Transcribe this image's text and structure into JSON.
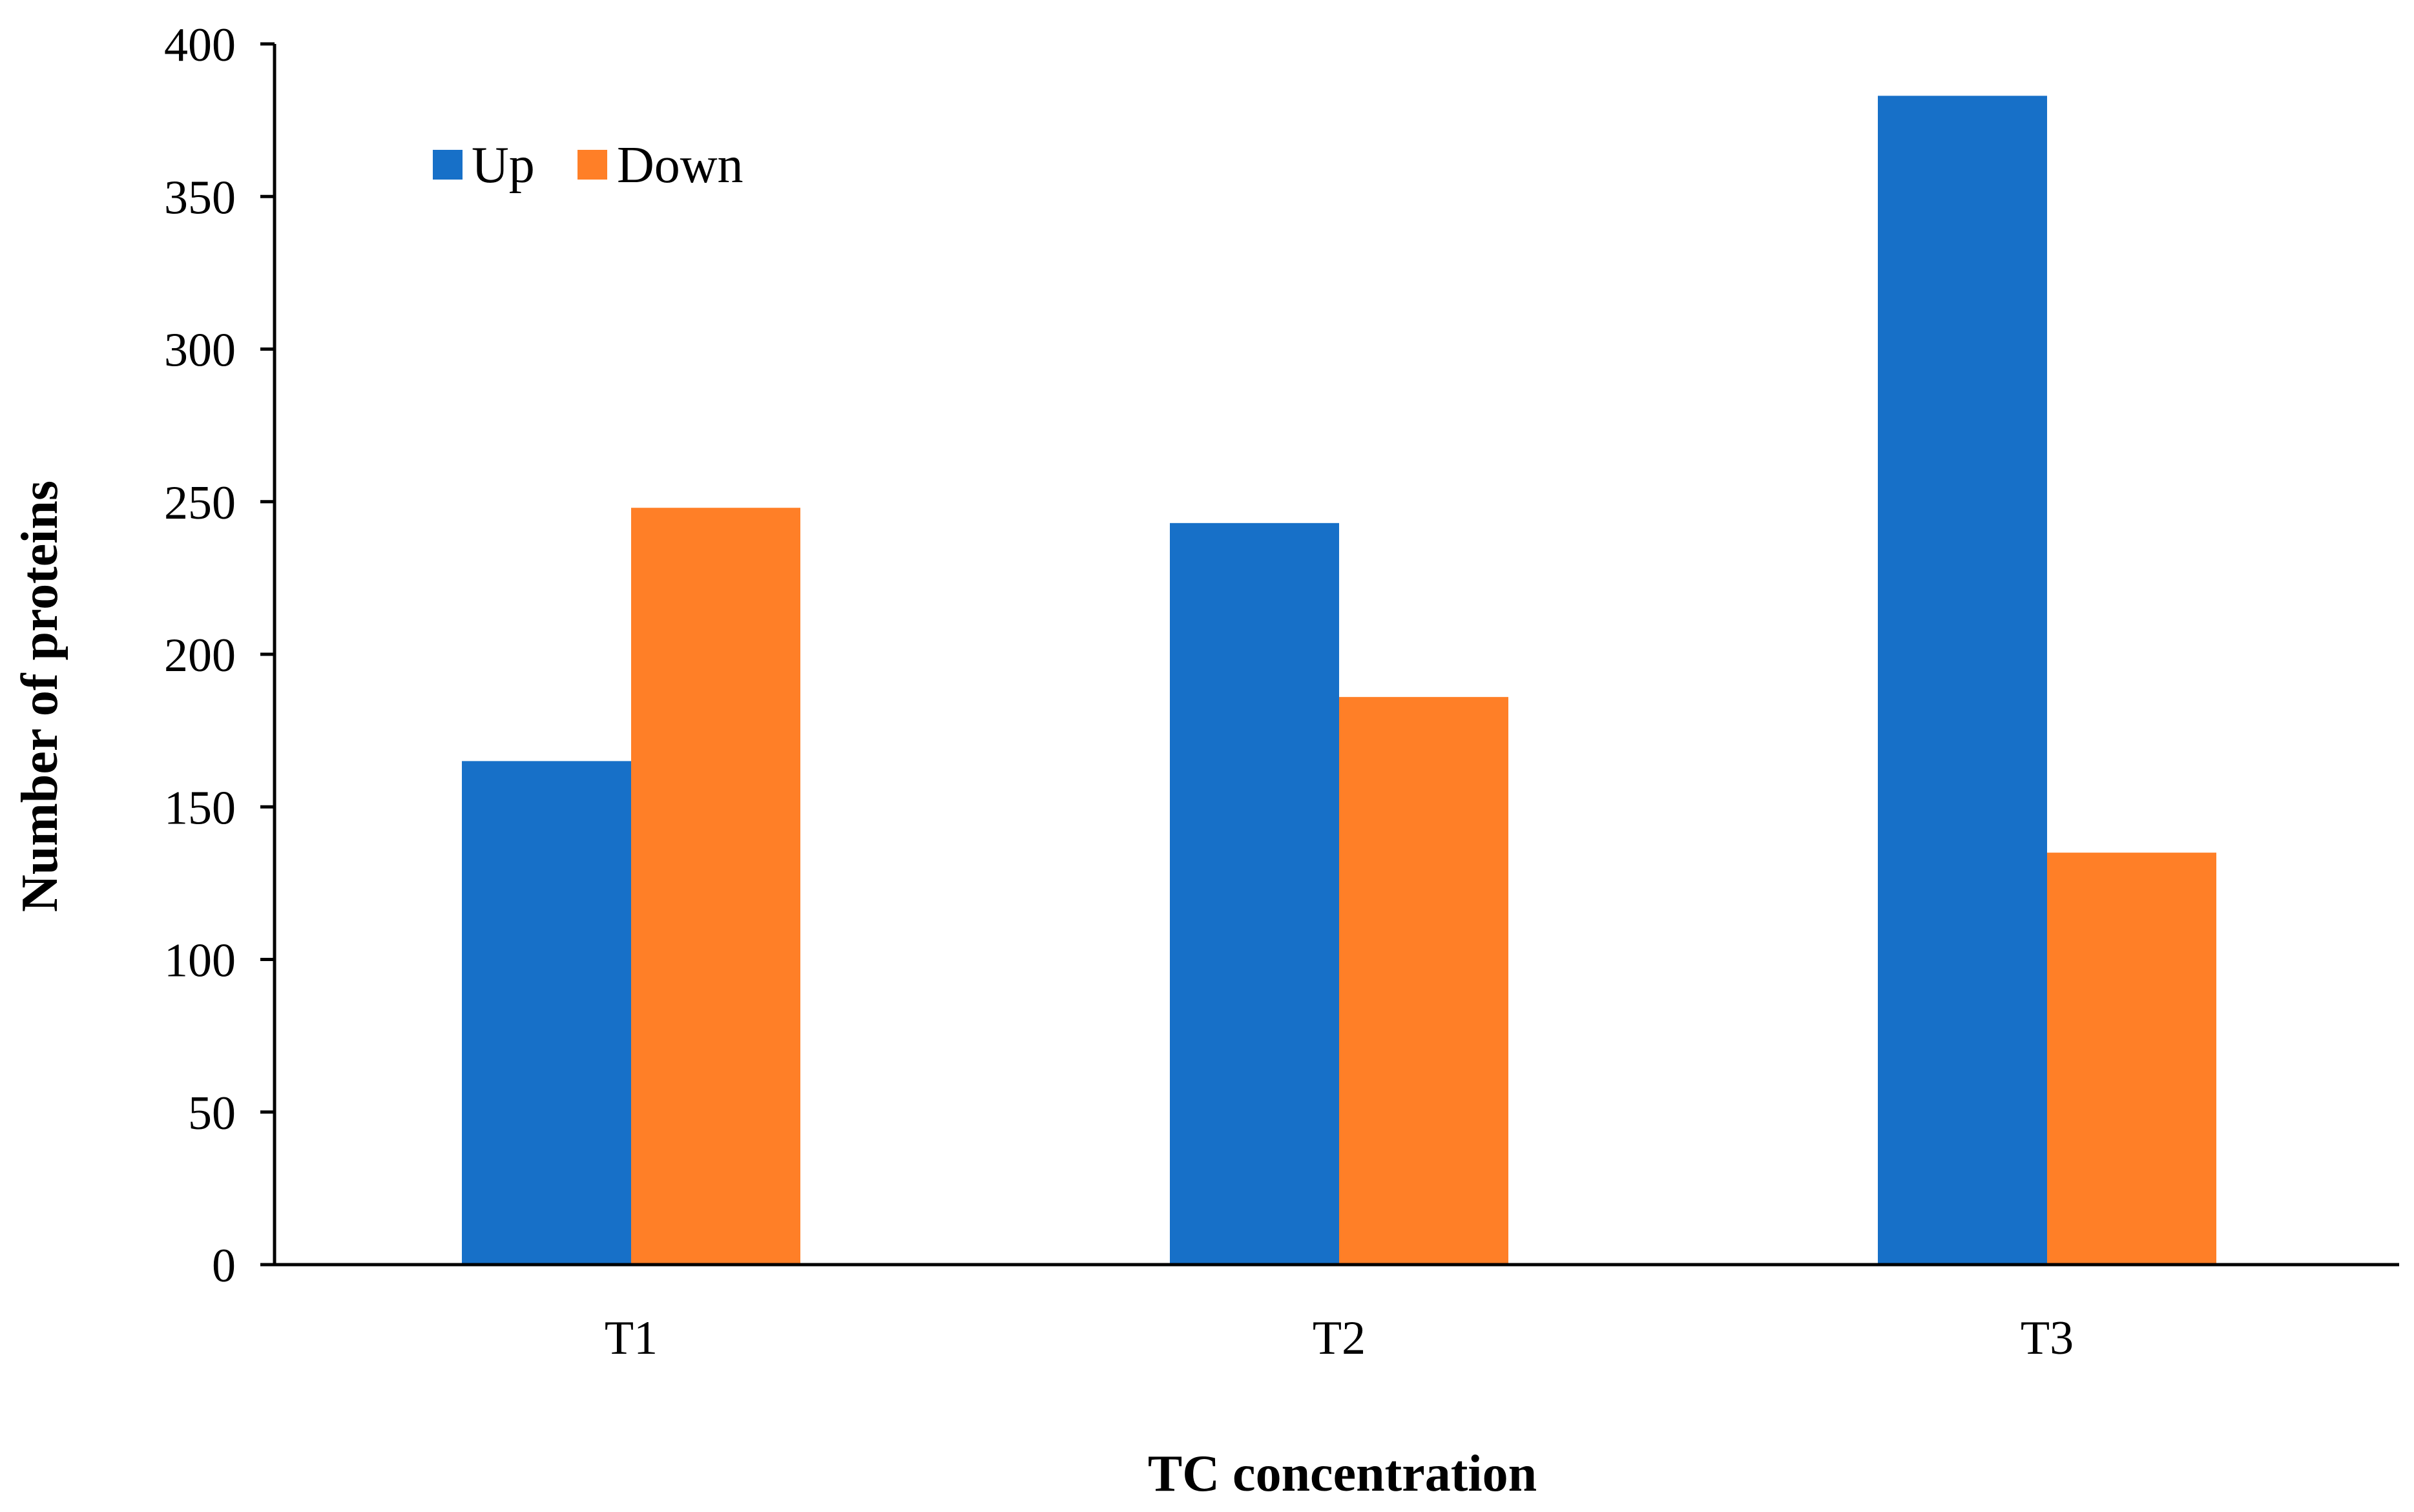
{
  "chart_data": {
    "type": "bar",
    "categories": [
      "T1",
      "T2",
      "T3"
    ],
    "series": [
      {
        "name": "Up",
        "values": [
          165,
          243,
          383
        ],
        "color": "#1770C8"
      },
      {
        "name": "Down",
        "values": [
          248,
          186,
          135
        ],
        "color": "#FF7F27"
      }
    ],
    "xlabel": "TC concentration",
    "ylabel": "Number of proteins",
    "ylim": [
      0,
      400
    ],
    "yticks": [
      "0",
      "50",
      "100",
      "150",
      "200",
      "250",
      "300",
      "350",
      "400"
    ],
    "grid": false,
    "legend_position": "top-left"
  }
}
